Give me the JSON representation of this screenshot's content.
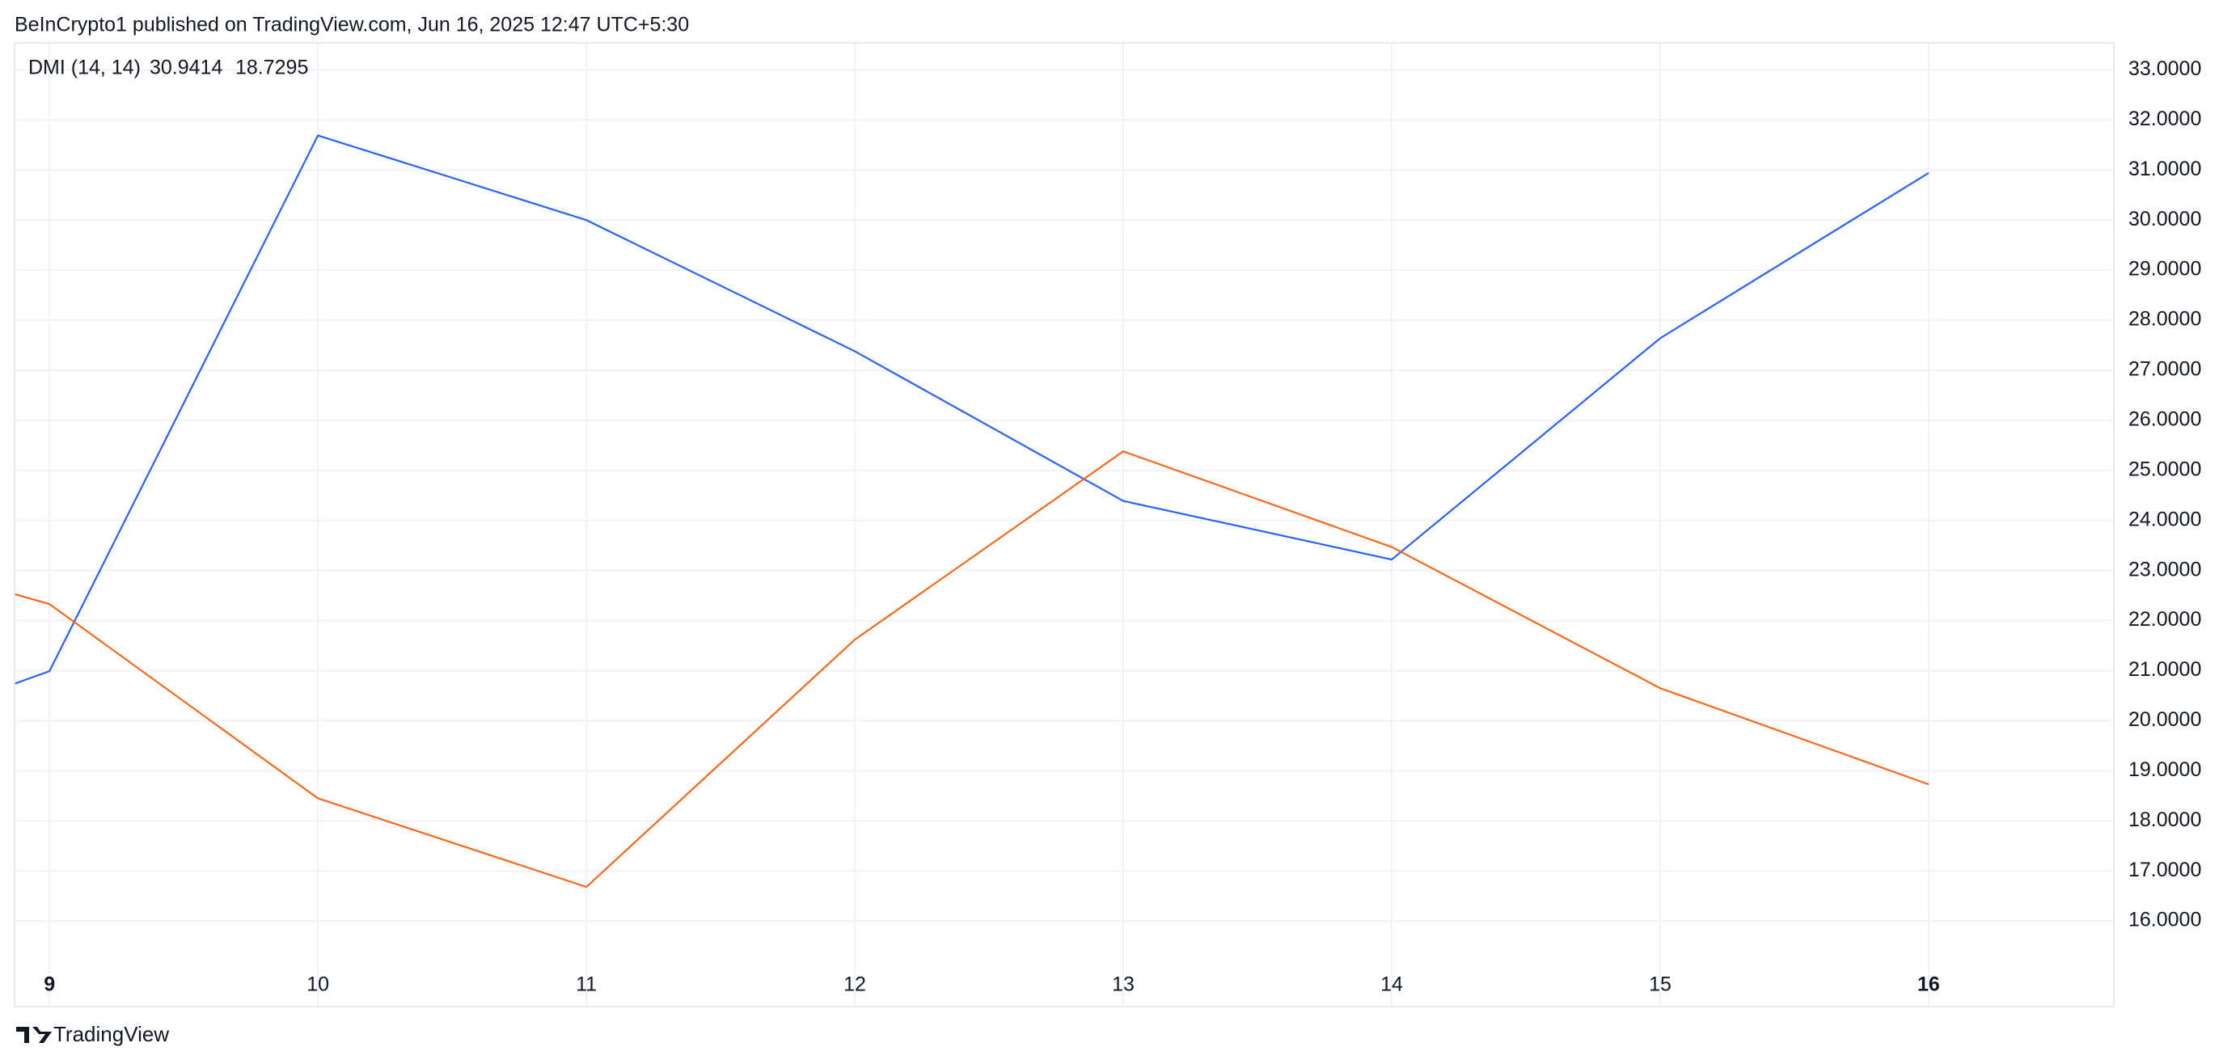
{
  "header": {
    "text": "BeInCrypto1 published on TradingView.com, Jun 16, 2025 12:47 UTC+5:30"
  },
  "footer": {
    "brand": "TradingView"
  },
  "chart_data": {
    "type": "line",
    "indicator": "DMI (14, 14)",
    "x": [
      8.87,
      9,
      10,
      11,
      12,
      13,
      14,
      15,
      16
    ],
    "series": [
      {
        "color": "#2962ff",
        "values": [
          20.74,
          20.99,
          31.69,
          30.0,
          27.38,
          24.39,
          23.22,
          27.64,
          30.9414
        ]
      },
      {
        "color": "#f7681a",
        "values": [
          22.53,
          22.33,
          18.45,
          16.68,
          21.62,
          25.38,
          23.47,
          20.65,
          18.7295
        ]
      }
    ],
    "xlim": [
      8.87,
      16.69
    ],
    "xticks": [
      9,
      10,
      11,
      12,
      13,
      14,
      15,
      16
    ],
    "ylim": [
      14.29,
      33.54
    ],
    "yticks": [
      {
        "value": 16,
        "label": "16.0000"
      },
      {
        "value": 17,
        "label": "17.0000"
      },
      {
        "value": 18,
        "label": "18.0000"
      },
      {
        "value": 19,
        "label": "19.0000"
      },
      {
        "value": 20,
        "label": "20.0000"
      },
      {
        "value": 21,
        "label": "21.0000"
      },
      {
        "value": 22,
        "label": "22.0000"
      },
      {
        "value": 23,
        "label": "23.0000"
      },
      {
        "value": 24,
        "label": "24.0000"
      },
      {
        "value": 25,
        "label": "25.0000"
      },
      {
        "value": 26,
        "label": "26.0000"
      },
      {
        "value": 27,
        "label": "27.0000"
      },
      {
        "value": 28,
        "label": "28.0000"
      },
      {
        "value": 29,
        "label": "29.0000"
      },
      {
        "value": 30,
        "label": "30.0000"
      },
      {
        "value": 31,
        "label": "31.0000"
      },
      {
        "value": 32,
        "label": "32.0000"
      },
      {
        "value": 33,
        "label": "33.0000"
      }
    ],
    "grid": true
  }
}
